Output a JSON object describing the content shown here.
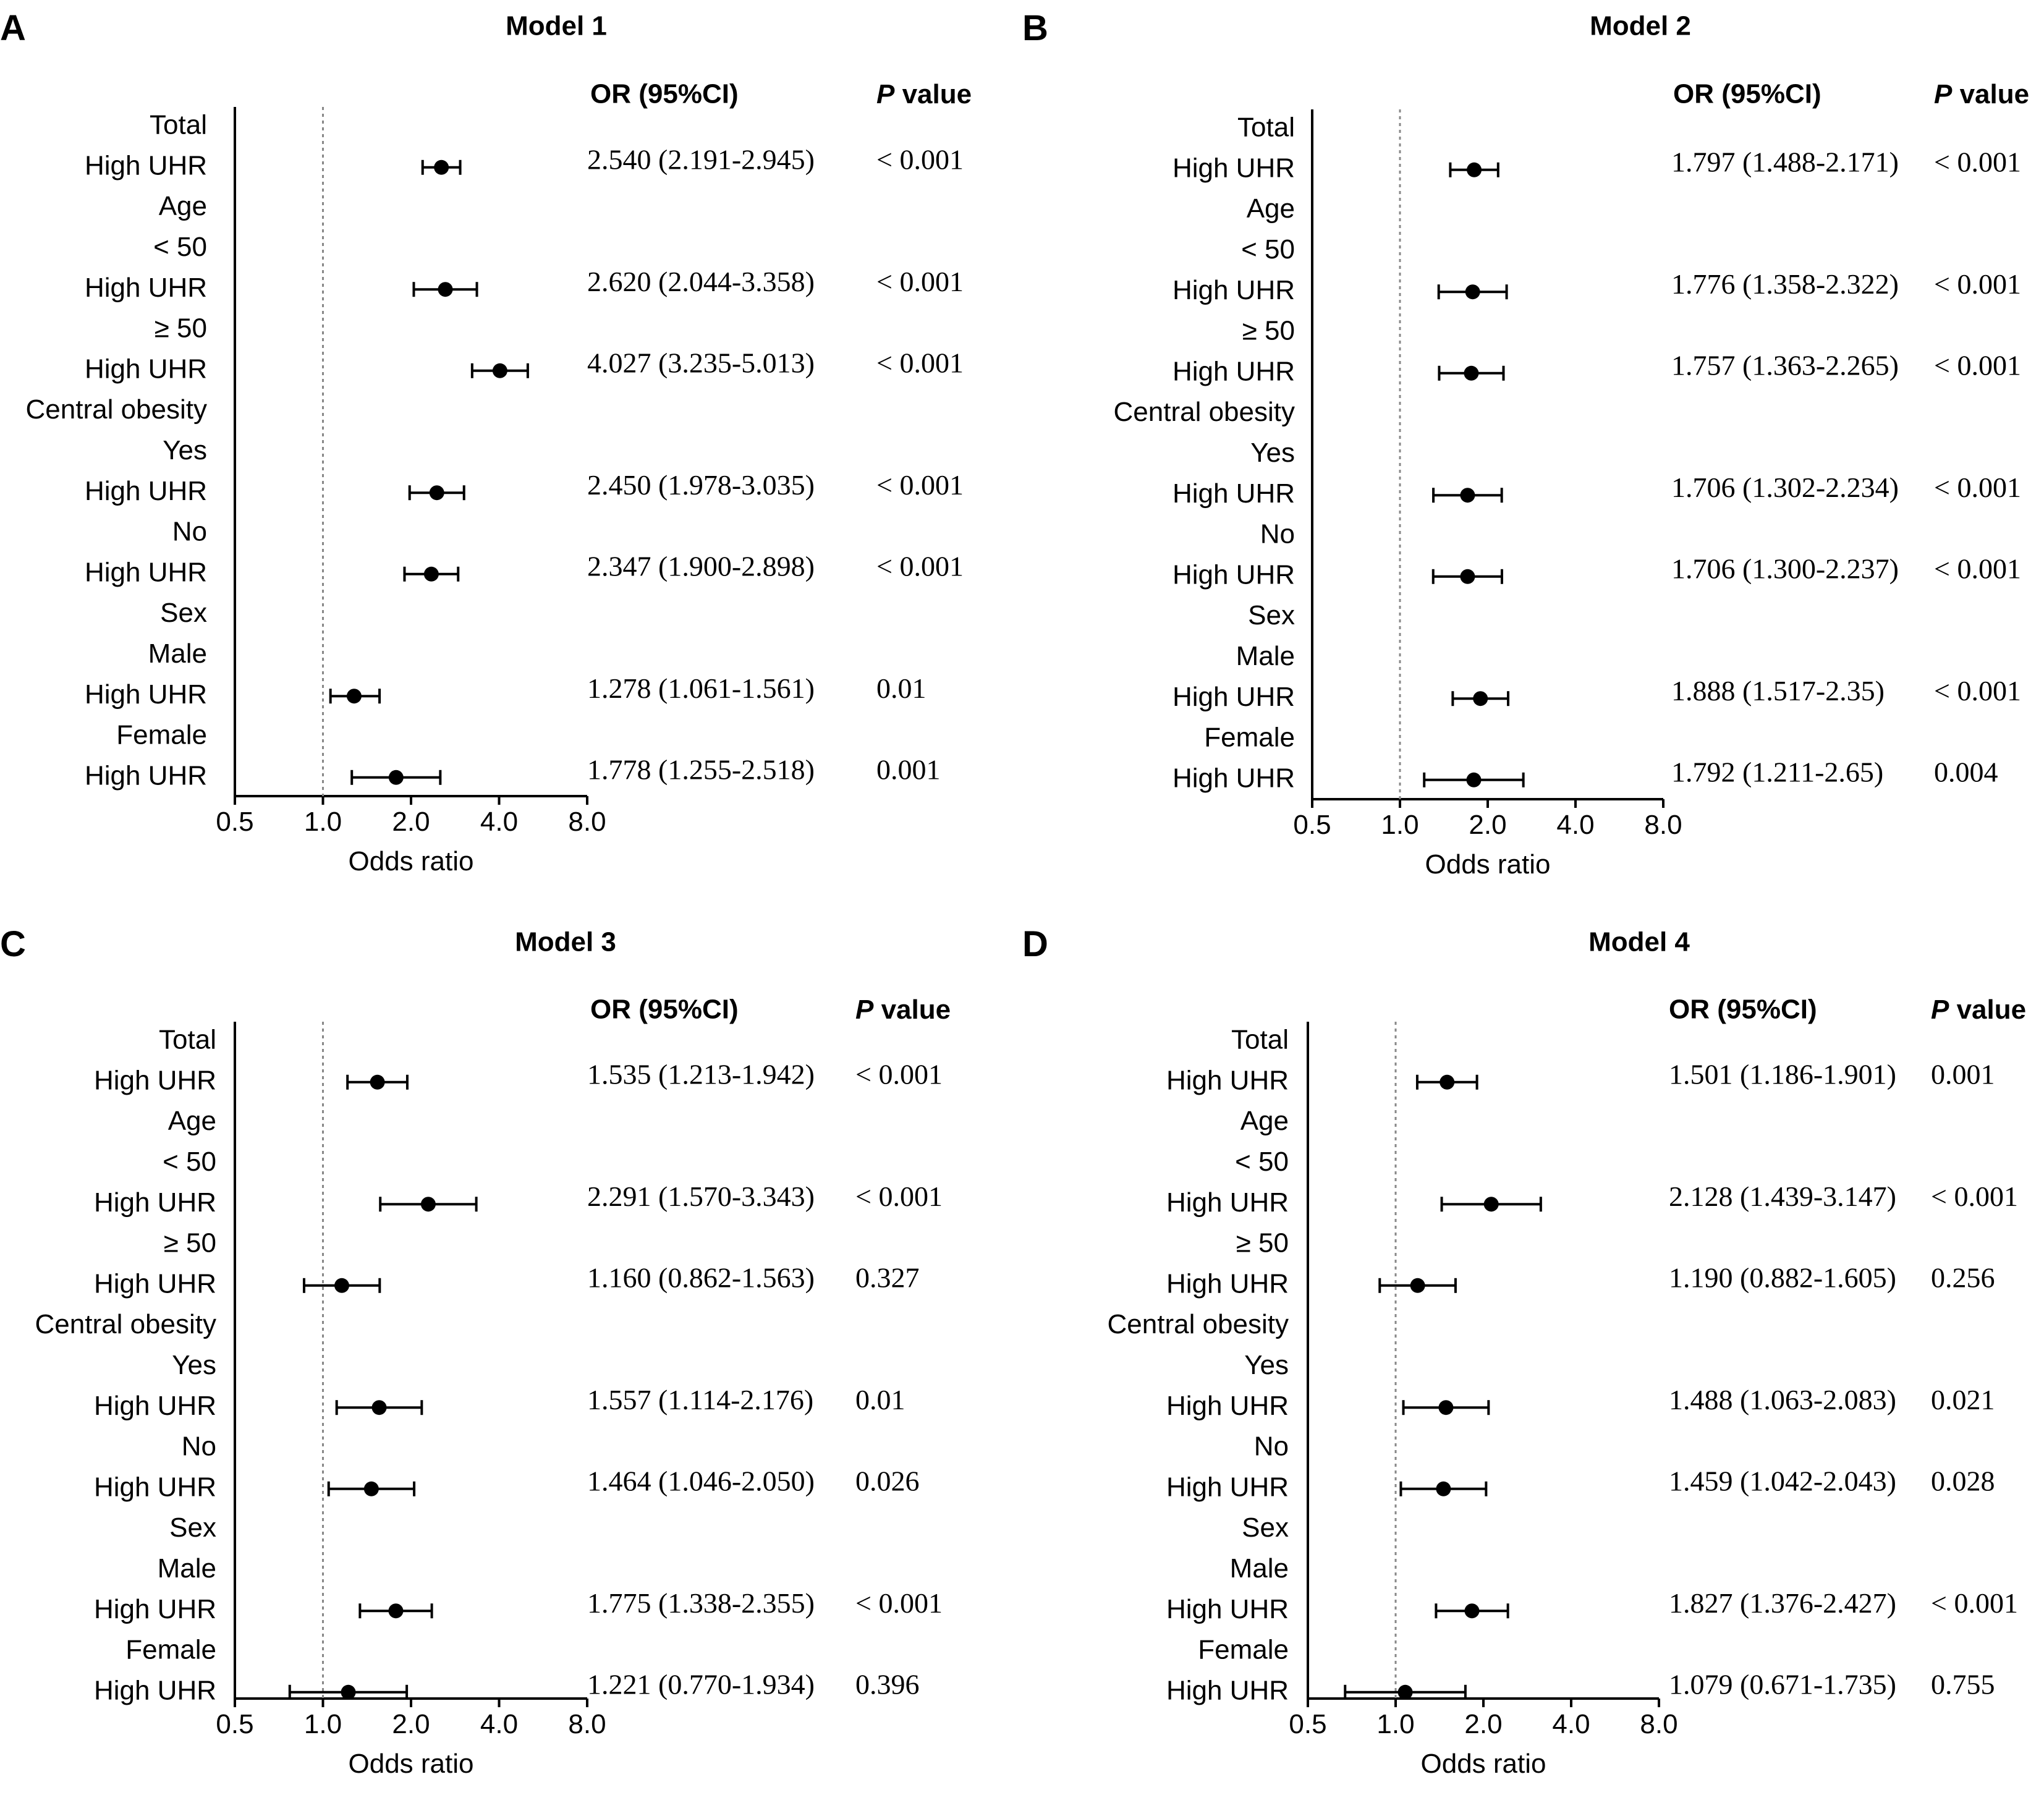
{
  "figure": {
    "axis_label": "Odds ratio",
    "or_header": "OR (95%CI)",
    "p_header_italic": "P",
    "p_header_rest": " value",
    "colors": {
      "ink": "#000000",
      "reference_line": "#888888"
    }
  },
  "chart_data": [
    {
      "panel": "A",
      "type": "forest",
      "title": "Model 1",
      "xlabel": "Odds ratio",
      "x_scale": "log2",
      "xlim": [
        0.5,
        8.0
      ],
      "xticks": [
        "0.5",
        "1.0",
        "2.0",
        "4.0",
        "8.0"
      ],
      "reference_line": 1.0,
      "rows": [
        {
          "label": "Total"
        },
        {
          "label": "High UHR",
          "or": 2.54,
          "lo": 2.191,
          "hi": 2.945,
          "text": "2.540 (2.191-2.945)",
          "p": "< 0.001"
        },
        {
          "label": "Age"
        },
        {
          "label": "< 50"
        },
        {
          "label": "High UHR",
          "or": 2.62,
          "lo": 2.044,
          "hi": 3.358,
          "text": "2.620 (2.044-3.358)",
          "p": "< 0.001"
        },
        {
          "label": "≥ 50"
        },
        {
          "label": "High UHR",
          "or": 4.027,
          "lo": 3.235,
          "hi": 5.013,
          "text": "4.027 (3.235-5.013)",
          "p": "< 0.001"
        },
        {
          "label": "Central obesity"
        },
        {
          "label": "Yes"
        },
        {
          "label": "High UHR",
          "or": 2.45,
          "lo": 1.978,
          "hi": 3.035,
          "text": "2.450 (1.978-3.035)",
          "p": "< 0.001"
        },
        {
          "label": "No"
        },
        {
          "label": "High UHR",
          "or": 2.347,
          "lo": 1.9,
          "hi": 2.898,
          "text": "2.347 (1.900-2.898)",
          "p": "< 0.001"
        },
        {
          "label": "Sex"
        },
        {
          "label": "Male"
        },
        {
          "label": "High UHR",
          "or": 1.278,
          "lo": 1.061,
          "hi": 1.561,
          "text": "1.278 (1.061-1.561)",
          "p": "0.01"
        },
        {
          "label": "Female"
        },
        {
          "label": "High UHR",
          "or": 1.778,
          "lo": 1.255,
          "hi": 2.518,
          "text": "1.778 (1.255-2.518)",
          "p": "0.001"
        }
      ]
    },
    {
      "panel": "B",
      "type": "forest",
      "title": "Model 2",
      "xlabel": "Odds ratio",
      "x_scale": "log2",
      "xlim": [
        0.5,
        8.0
      ],
      "xticks": [
        "0.5",
        "1.0",
        "2.0",
        "4.0",
        "8.0"
      ],
      "reference_line": 1.0,
      "rows": [
        {
          "label": "Total"
        },
        {
          "label": "High UHR",
          "or": 1.797,
          "lo": 1.488,
          "hi": 2.171,
          "text": "1.797 (1.488-2.171)",
          "p": "< 0.001"
        },
        {
          "label": "Age"
        },
        {
          "label": "< 50"
        },
        {
          "label": "High UHR",
          "or": 1.776,
          "lo": 1.358,
          "hi": 2.322,
          "text": "1.776 (1.358-2.322)",
          "p": "< 0.001"
        },
        {
          "label": "≥ 50"
        },
        {
          "label": "High UHR",
          "or": 1.757,
          "lo": 1.363,
          "hi": 2.265,
          "text": "1.757 (1.363-2.265)",
          "p": "< 0.001"
        },
        {
          "label": "Central obesity"
        },
        {
          "label": "Yes"
        },
        {
          "label": "High UHR",
          "or": 1.706,
          "lo": 1.302,
          "hi": 2.234,
          "text": "1.706 (1.302-2.234)",
          "p": "< 0.001"
        },
        {
          "label": "No"
        },
        {
          "label": "High UHR",
          "or": 1.706,
          "lo": 1.3,
          "hi": 2.237,
          "text": "1.706 (1.300-2.237)",
          "p": "< 0.001"
        },
        {
          "label": "Sex"
        },
        {
          "label": "Male"
        },
        {
          "label": "High UHR",
          "or": 1.888,
          "lo": 1.517,
          "hi": 2.35,
          "text": "1.888 (1.517-2.35)",
          "p": "< 0.001"
        },
        {
          "label": "Female"
        },
        {
          "label": "High UHR",
          "or": 1.792,
          "lo": 1.211,
          "hi": 2.65,
          "text": "1.792 (1.211-2.65)",
          "p": "0.004"
        }
      ]
    },
    {
      "panel": "C",
      "type": "forest",
      "title": "Model 3",
      "xlabel": "Odds ratio",
      "x_scale": "log2",
      "xlim": [
        0.5,
        8.0
      ],
      "xticks": [
        "0.5",
        "1.0",
        "2.0",
        "4.0",
        "8.0"
      ],
      "reference_line": 1.0,
      "rows": [
        {
          "label": "Total"
        },
        {
          "label": "High UHR",
          "or": 1.535,
          "lo": 1.213,
          "hi": 1.942,
          "text": "1.535 (1.213-1.942)",
          "p": "< 0.001"
        },
        {
          "label": "Age"
        },
        {
          "label": "< 50"
        },
        {
          "label": "High UHR",
          "or": 2.291,
          "lo": 1.57,
          "hi": 3.343,
          "text": "2.291 (1.570-3.343)",
          "p": "< 0.001"
        },
        {
          "label": "≥ 50"
        },
        {
          "label": "High UHR",
          "or": 1.16,
          "lo": 0.862,
          "hi": 1.563,
          "text": "1.160 (0.862-1.563)",
          "p": "0.327"
        },
        {
          "label": "Central obesity"
        },
        {
          "label": "Yes"
        },
        {
          "label": "High UHR",
          "or": 1.557,
          "lo": 1.114,
          "hi": 2.176,
          "text": "1.557 (1.114-2.176)",
          "p": "0.01"
        },
        {
          "label": "No"
        },
        {
          "label": "High UHR",
          "or": 1.464,
          "lo": 1.046,
          "hi": 2.05,
          "text": "1.464 (1.046-2.050)",
          "p": "0.026"
        },
        {
          "label": "Sex"
        },
        {
          "label": "Male"
        },
        {
          "label": "High UHR",
          "or": 1.775,
          "lo": 1.338,
          "hi": 2.355,
          "text": "1.775 (1.338-2.355)",
          "p": "< 0.001"
        },
        {
          "label": "Female"
        },
        {
          "label": "High UHR",
          "or": 1.221,
          "lo": 0.77,
          "hi": 1.934,
          "text": "1.221 (0.770-1.934)",
          "p": "0.396"
        }
      ]
    },
    {
      "panel": "D",
      "type": "forest",
      "title": "Model 4",
      "xlabel": "Odds ratio",
      "x_scale": "log2",
      "xlim": [
        0.5,
        8.0
      ],
      "xticks": [
        "0.5",
        "1.0",
        "2.0",
        "4.0",
        "8.0"
      ],
      "reference_line": 1.0,
      "rows": [
        {
          "label": "Total"
        },
        {
          "label": "High UHR",
          "or": 1.501,
          "lo": 1.186,
          "hi": 1.901,
          "text": "1.501 (1.186-1.901)",
          "p": "0.001"
        },
        {
          "label": "Age"
        },
        {
          "label": "< 50"
        },
        {
          "label": "High UHR",
          "or": 2.128,
          "lo": 1.439,
          "hi": 3.147,
          "text": "2.128 (1.439-3.147)",
          "p": "< 0.001"
        },
        {
          "label": "≥ 50"
        },
        {
          "label": "High UHR",
          "or": 1.19,
          "lo": 0.882,
          "hi": 1.605,
          "text": "1.190 (0.882-1.605)",
          "p": "0.256"
        },
        {
          "label": "Central obesity"
        },
        {
          "label": "Yes"
        },
        {
          "label": "High UHR",
          "or": 1.488,
          "lo": 1.063,
          "hi": 2.083,
          "text": "1.488 (1.063-2.083)",
          "p": "0.021"
        },
        {
          "label": "No"
        },
        {
          "label": "High UHR",
          "or": 1.459,
          "lo": 1.042,
          "hi": 2.043,
          "text": "1.459 (1.042-2.043)",
          "p": "0.028"
        },
        {
          "label": "Sex"
        },
        {
          "label": "Male"
        },
        {
          "label": "High UHR",
          "or": 1.827,
          "lo": 1.376,
          "hi": 2.427,
          "text": "1.827 (1.376-2.427)",
          "p": "< 0.001"
        },
        {
          "label": "Female"
        },
        {
          "label": "High UHR",
          "or": 1.079,
          "lo": 0.671,
          "hi": 1.735,
          "text": "1.079 (0.671-1.735)",
          "p": "0.755"
        }
      ]
    }
  ]
}
